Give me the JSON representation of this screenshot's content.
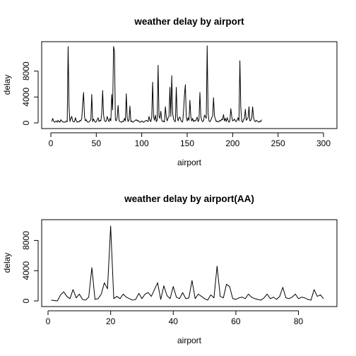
{
  "chart_data": [
    {
      "type": "line",
      "title": "weather delay by airport",
      "xlabel": "airport",
      "ylabel": "delay",
      "xlim": [
        0,
        300
      ],
      "ylim": [
        0,
        12000
      ],
      "xticks": [
        0,
        50,
        100,
        150,
        200,
        250,
        300
      ],
      "yticks": [
        0,
        4000,
        8000
      ],
      "grid": false,
      "x_start": 1,
      "series": [
        {
          "values": [
            200,
            700,
            300,
            100,
            200,
            300,
            100,
            400,
            200,
            100,
            500,
            300,
            200,
            100,
            150,
            100,
            300,
            200,
            11800,
            2500,
            200,
            700,
            1000,
            300,
            150,
            200,
            800,
            300,
            100,
            200,
            150,
            400,
            300,
            700,
            2900,
            4700,
            1000,
            300,
            500,
            200,
            100,
            150,
            300,
            500,
            4400,
            200,
            600,
            300,
            100,
            200,
            500,
            800,
            200,
            400,
            300,
            1500,
            5000,
            1200,
            400,
            200,
            300,
            1000,
            500,
            200,
            700,
            300,
            4400,
            2000,
            11800,
            11000,
            500,
            300,
            900,
            2700,
            400,
            200,
            150,
            100,
            300,
            200,
            700,
            300,
            4500,
            800,
            200,
            500,
            2600,
            200,
            300,
            100,
            200,
            300,
            400,
            500,
            300,
            400,
            200,
            100,
            150,
            300,
            200,
            100,
            200,
            300,
            400,
            300,
            200,
            1000,
            400,
            200,
            900,
            6300,
            1000,
            400,
            1200,
            200,
            400,
            8900,
            1000,
            700,
            1800,
            400,
            200,
            300,
            150,
            2500,
            900,
            300,
            800,
            1000,
            5500,
            1000,
            7300,
            1500,
            600,
            300,
            200,
            5500,
            1000,
            300,
            800,
            900,
            400,
            200,
            150,
            1800,
            4300,
            5900,
            900,
            300,
            800,
            400,
            3500,
            1000,
            300,
            700,
            200,
            400,
            300,
            500,
            900,
            200,
            500,
            4700,
            1000,
            400,
            200,
            300,
            1200,
            1000,
            700,
            11900,
            1500,
            300,
            200,
            400,
            800,
            1100,
            3900,
            1100,
            600,
            200,
            300,
            150,
            200,
            400,
            300,
            600,
            500,
            1300,
            300,
            700,
            200,
            800,
            400,
            100,
            300,
            2200,
            1000,
            300,
            400,
            600,
            300,
            200,
            500,
            800,
            300,
            9600,
            2300,
            300,
            100,
            500,
            700,
            2100,
            400,
            600,
            800,
            2500,
            300,
            400,
            700,
            2500,
            900,
            300,
            200,
            400,
            300,
            200,
            100,
            300,
            200,
            500
          ]
        }
      ]
    },
    {
      "type": "line",
      "title": "weather delay by airport(AA)",
      "xlabel": "airport",
      "ylabel": "delay",
      "xlim": [
        0,
        88
      ],
      "ylim": [
        0,
        10000
      ],
      "xticks": [
        0,
        20,
        40,
        60,
        80
      ],
      "yticks": [
        0,
        4000,
        8000
      ],
      "grid": false,
      "x_start": 1,
      "series": [
        {
          "values": [
            100,
            50,
            0,
            800,
            1200,
            600,
            300,
            1500,
            400,
            900,
            200,
            100,
            500,
            4400,
            200,
            300,
            900,
            2400,
            1600,
            9900,
            300,
            600,
            300,
            900,
            500,
            300,
            100,
            200,
            1000,
            300,
            900,
            1100,
            600,
            1500,
            2400,
            200,
            2000,
            700,
            300,
            1900,
            500,
            300,
            1100,
            300,
            400,
            2700,
            300,
            900,
            600,
            300,
            100,
            800,
            400,
            4600,
            600,
            400,
            2200,
            1900,
            300,
            200,
            400,
            500,
            300,
            900,
            500,
            300,
            200,
            100,
            400,
            900,
            300,
            500,
            200,
            600,
            1800,
            400,
            300,
            500,
            900,
            300,
            500,
            400,
            200,
            100,
            1500,
            600,
            800,
            300
          ]
        }
      ]
    }
  ]
}
